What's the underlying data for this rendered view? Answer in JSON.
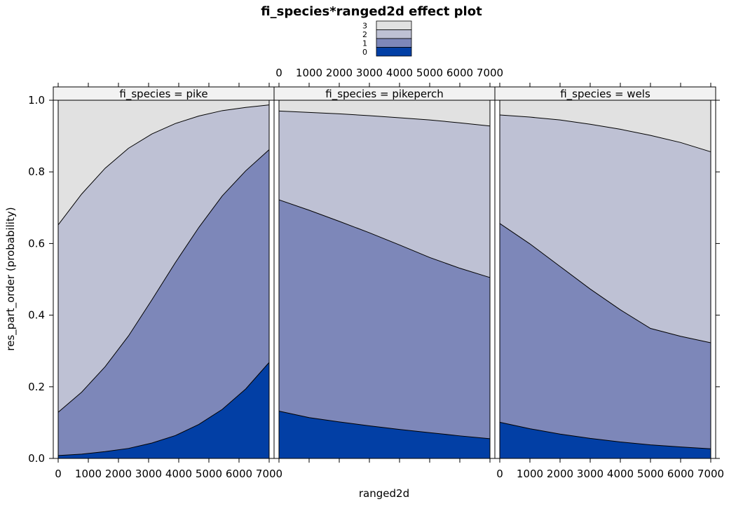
{
  "chart_data": {
    "type": "area",
    "title": "fi_species*ranged2d effect plot",
    "xlabel": "ranged2d",
    "ylabel": "res_part_order (probability)",
    "xlim": [
      -200,
      7200
    ],
    "ylim": [
      0,
      1
    ],
    "x_ticks": [
      0,
      1000,
      2000,
      3000,
      4000,
      5000,
      6000,
      7000
    ],
    "y_ticks": [
      0.0,
      0.2,
      0.4,
      0.6,
      0.8,
      1.0
    ],
    "y_tick_labels": [
      "0.0",
      "0.2",
      "0.4",
      "0.6",
      "0.8",
      "1.0"
    ],
    "legend": {
      "placement": "top",
      "entries": [
        {
          "label": "3",
          "color": "#e1e1e1"
        },
        {
          "label": "2",
          "color": "#bec1d4"
        },
        {
          "label": "1",
          "color": "#7d87b9"
        },
        {
          "label": "0",
          "color": "#023fa5"
        }
      ]
    },
    "category_levels": [
      "0",
      "1",
      "2",
      "3"
    ],
    "category_colors": [
      "#023fa5",
      "#7d87b9",
      "#bec1d4",
      "#e1e1e1"
    ],
    "panels": [
      {
        "strip": "fi_species = pike",
        "x": [
          0,
          778,
          1556,
          2333,
          3111,
          3889,
          4667,
          5444,
          6222,
          7000
        ],
        "cumulative": [
          [
            0.008,
            0.012,
            0.019,
            0.028,
            0.043,
            0.064,
            0.095,
            0.137,
            0.194,
            0.268
          ],
          [
            0.129,
            0.185,
            0.256,
            0.342,
            0.443,
            0.547,
            0.645,
            0.733,
            0.803,
            0.862
          ],
          [
            0.652,
            0.738,
            0.81,
            0.866,
            0.906,
            0.935,
            0.956,
            0.971,
            0.98,
            0.987
          ]
        ]
      },
      {
        "strip": "fi_species = pikeperch",
        "x": [
          0,
          1000,
          2000,
          3000,
          4000,
          5000,
          6000,
          7000
        ],
        "cumulative": [
          [
            0.132,
            0.114,
            0.102,
            0.091,
            0.081,
            0.072,
            0.063,
            0.055
          ],
          [
            0.722,
            0.693,
            0.662,
            0.63,
            0.596,
            0.561,
            0.531,
            0.505
          ],
          [
            0.97,
            0.966,
            0.962,
            0.957,
            0.951,
            0.945,
            0.937,
            0.928
          ]
        ]
      },
      {
        "strip": "fi_species = wels",
        "x": [
          0,
          1000,
          2000,
          3000,
          4000,
          5000,
          6000,
          7000
        ],
        "cumulative": [
          [
            0.101,
            0.083,
            0.068,
            0.056,
            0.046,
            0.038,
            0.032,
            0.027
          ],
          [
            0.656,
            0.599,
            0.536,
            0.473,
            0.415,
            0.363,
            0.341,
            0.323
          ],
          [
            0.959,
            0.953,
            0.945,
            0.933,
            0.919,
            0.902,
            0.882,
            0.856
          ]
        ]
      }
    ]
  }
}
